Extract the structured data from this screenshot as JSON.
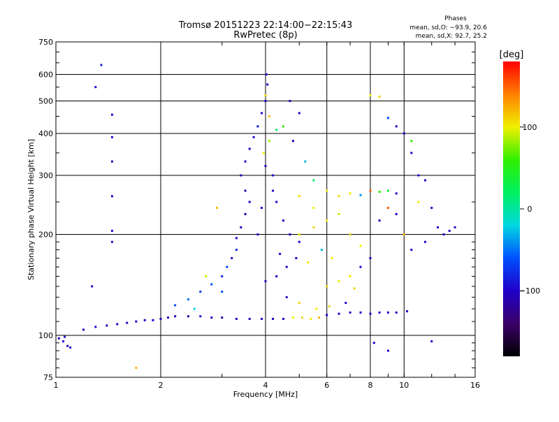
{
  "chart_data": {
    "type": "scatter",
    "title_line1": "Tromsø 20151223 22:14:00−22:15:43",
    "title_line2": "RwPretec (8p)",
    "phases": {
      "heading": "Phases",
      "line_o": "mean, sd,O: −93.9, 20.6",
      "line_x": "mean, sd,X:  92.7, 25.2"
    },
    "xlabel": "Frequency [MHz]",
    "ylabel": "Stationary phase Virtual Height [km]",
    "x_scale": "log",
    "y_scale": "log",
    "xlim": [
      1,
      16
    ],
    "ylim": [
      75,
      750
    ],
    "x_ticks": [
      1,
      2,
      4,
      6,
      8,
      10,
      16
    ],
    "x_tick_labels": [
      "1",
      "2",
      "4",
      "6",
      "8",
      "10",
      "16"
    ],
    "y_ticks": [
      75,
      100,
      200,
      300,
      400,
      500,
      600,
      750
    ],
    "y_tick_labels": [
      "75",
      "100",
      "200",
      "300",
      "400",
      "500",
      "600",
      "750"
    ],
    "grid": true,
    "colorbar": {
      "label": "[deg]",
      "range": [
        -180,
        180
      ],
      "ticks": [
        100,
        0,
        -100
      ],
      "tick_labels": [
        "100",
        "0",
        "−100"
      ],
      "palette": [
        "#000000",
        "#3b0068",
        "#2000c8",
        "#0050ff",
        "#00d8e0",
        "#00f060",
        "#30f000",
        "#f0f000",
        "#ff8000",
        "#ff0000"
      ]
    },
    "series": [
      {
        "values": [
          [
            1.02,
            98,
            -100
          ],
          [
            1.05,
            96,
            -95
          ],
          [
            1.08,
            93,
            -110
          ],
          [
            1.1,
            92,
            -90
          ],
          [
            1.06,
            99,
            -105
          ],
          [
            1.3,
            550,
            -90
          ],
          [
            1.35,
            640,
            -85
          ],
          [
            1.45,
            455,
            -100
          ],
          [
            1.45,
            390,
            -95
          ],
          [
            1.45,
            330,
            -110
          ],
          [
            1.45,
            260,
            -100
          ],
          [
            1.45,
            205,
            -95
          ],
          [
            1.45,
            190,
            -90
          ],
          [
            1.27,
            140,
            -100
          ],
          [
            1.7,
            80,
            120
          ],
          [
            1.2,
            104,
            -100
          ],
          [
            1.3,
            106,
            -95
          ],
          [
            1.4,
            107,
            -110
          ],
          [
            1.5,
            108,
            -100
          ],
          [
            1.6,
            109,
            -105
          ],
          [
            1.7,
            110,
            -95
          ],
          [
            1.8,
            111,
            -100
          ],
          [
            1.9,
            111,
            -100
          ],
          [
            2.0,
            112,
            -105
          ],
          [
            2.1,
            113,
            -95
          ],
          [
            2.2,
            114,
            -100
          ],
          [
            2.4,
            114,
            -105
          ],
          [
            2.6,
            114,
            -90
          ],
          [
            2.8,
            113,
            -100
          ],
          [
            3.0,
            113,
            -110
          ],
          [
            3.3,
            112,
            -100
          ],
          [
            3.6,
            112,
            -100
          ],
          [
            3.9,
            112,
            -95
          ],
          [
            4.2,
            112,
            -100
          ],
          [
            4.5,
            112,
            -100
          ],
          [
            4.8,
            113,
            100
          ],
          [
            5.1,
            113,
            110
          ],
          [
            5.4,
            112,
            100
          ],
          [
            5.7,
            113,
            120
          ],
          [
            6.0,
            115,
            -100
          ],
          [
            6.5,
            116,
            -100
          ],
          [
            7.0,
            117,
            -95
          ],
          [
            7.5,
            117,
            -100
          ],
          [
            8.0,
            116,
            -100
          ],
          [
            8.5,
            117,
            -100
          ],
          [
            9.0,
            117,
            -95
          ],
          [
            9.5,
            117,
            -100
          ],
          [
            10.2,
            118,
            -100
          ],
          [
            2.2,
            123,
            -60
          ],
          [
            2.4,
            128,
            -50
          ],
          [
            2.6,
            135,
            -70
          ],
          [
            2.8,
            142,
            -60
          ],
          [
            3.0,
            150,
            -80
          ],
          [
            3.1,
            160,
            -70
          ],
          [
            3.2,
            170,
            -90
          ],
          [
            3.3,
            180,
            -80
          ],
          [
            3.3,
            195,
            -100
          ],
          [
            3.4,
            210,
            -100
          ],
          [
            3.5,
            230,
            -105
          ],
          [
            3.6,
            250,
            -100
          ],
          [
            3.5,
            270,
            -110
          ],
          [
            3.4,
            300,
            -110
          ],
          [
            3.5,
            330,
            -100
          ],
          [
            3.6,
            360,
            -100
          ],
          [
            3.7,
            390,
            -95
          ],
          [
            3.8,
            420,
            -90
          ],
          [
            3.9,
            460,
            -100
          ],
          [
            4.0,
            500,
            -100
          ],
          [
            4.05,
            560,
            -100
          ],
          [
            4.02,
            600,
            -100
          ],
          [
            3.95,
            350,
            100
          ],
          [
            4.1,
            380,
            80
          ],
          [
            4.2,
            300,
            -100
          ],
          [
            4.3,
            250,
            -100
          ],
          [
            4.5,
            220,
            -100
          ],
          [
            4.7,
            200,
            -100
          ],
          [
            5.0,
            190,
            -100
          ],
          [
            4.9,
            170,
            -100
          ],
          [
            4.6,
            160,
            -100
          ],
          [
            4.3,
            150,
            -100
          ],
          [
            4.0,
            145,
            -95
          ],
          [
            4.4,
            175,
            -100
          ],
          [
            3.8,
            200,
            -100
          ],
          [
            3.9,
            240,
            -100
          ],
          [
            4.2,
            270,
            -95
          ],
          [
            4.0,
            320,
            -100
          ],
          [
            4.1,
            450,
            120
          ],
          [
            4.0,
            520,
            110
          ],
          [
            4.8,
            380,
            -100
          ],
          [
            5.2,
            330,
            -30
          ],
          [
            5.5,
            290,
            20
          ],
          [
            5.0,
            260,
            110
          ],
          [
            5.5,
            240,
            100
          ],
          [
            6.0,
            270,
            100
          ],
          [
            6.5,
            260,
            110
          ],
          [
            7.0,
            265,
            100
          ],
          [
            7.5,
            262,
            -40
          ],
          [
            8.0,
            270,
            150
          ],
          [
            8.5,
            268,
            60
          ],
          [
            9.0,
            270,
            40
          ],
          [
            9.5,
            265,
            -100
          ],
          [
            10.0,
            400,
            -100
          ],
          [
            10.5,
            380,
            60
          ],
          [
            11.0,
            300,
            -100
          ],
          [
            11.5,
            290,
            -100
          ],
          [
            12.0,
            240,
            -100
          ],
          [
            12.5,
            210,
            -100
          ],
          [
            13.0,
            200,
            -100
          ],
          [
            13.5,
            205,
            -100
          ],
          [
            14.0,
            210,
            -100
          ],
          [
            5.0,
            200,
            100
          ],
          [
            5.5,
            210,
            110
          ],
          [
            6.0,
            220,
            100
          ],
          [
            6.5,
            230,
            90
          ],
          [
            7.0,
            200,
            110
          ],
          [
            7.5,
            185,
            100
          ],
          [
            8.0,
            170,
            -100
          ],
          [
            8.5,
            220,
            -100
          ],
          [
            9.0,
            240,
            150
          ],
          [
            9.5,
            230,
            -100
          ],
          [
            10.0,
            200,
            120
          ],
          [
            10.5,
            180,
            -100
          ],
          [
            11.0,
            250,
            100
          ],
          [
            11.5,
            190,
            -100
          ],
          [
            6.0,
            140,
            110
          ],
          [
            6.5,
            145,
            100
          ],
          [
            7.0,
            150,
            100
          ],
          [
            7.2,
            138,
            110
          ],
          [
            7.5,
            160,
            -100
          ],
          [
            6.2,
            170,
            100
          ],
          [
            5.8,
            180,
            -30
          ],
          [
            5.3,
            165,
            100
          ],
          [
            4.6,
            130,
            -100
          ],
          [
            5.0,
            125,
            110
          ],
          [
            5.6,
            120,
            100
          ],
          [
            6.1,
            122,
            110
          ],
          [
            6.8,
            125,
            -100
          ],
          [
            8.0,
            520,
            100
          ],
          [
            8.5,
            515,
            110
          ],
          [
            9.0,
            445,
            -60
          ],
          [
            9.5,
            420,
            -100
          ],
          [
            10.5,
            350,
            -100
          ],
          [
            8.2,
            95,
            -100
          ],
          [
            9.0,
            90,
            -100
          ],
          [
            12.0,
            96,
            -100
          ],
          [
            2.9,
            240,
            120
          ],
          [
            2.7,
            150,
            90
          ],
          [
            3.0,
            135,
            -60
          ],
          [
            2.5,
            120,
            -20
          ],
          [
            4.7,
            500,
            -100
          ],
          [
            5.0,
            460,
            -100
          ],
          [
            4.5,
            420,
            60
          ],
          [
            4.3,
            410,
            20
          ]
        ]
      }
    ]
  }
}
